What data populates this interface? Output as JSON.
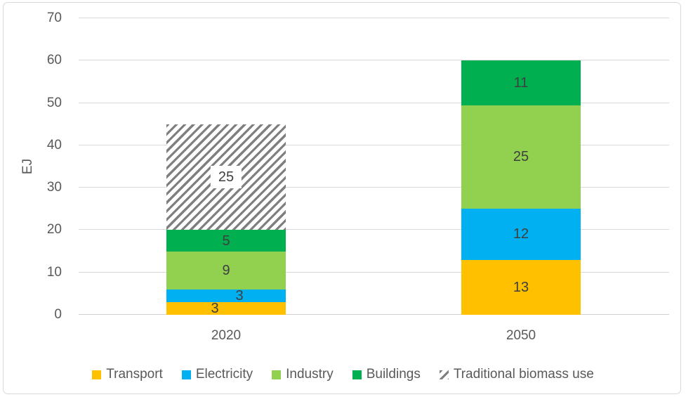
{
  "frame": {
    "border_color": "#D9D9D9",
    "background": "#FFFFFF"
  },
  "chart_data": {
    "type": "stacked-bar",
    "title": "",
    "ylabel": "EJ",
    "xlabel": "",
    "ylim": [
      0,
      70
    ],
    "yticks": [
      0,
      10,
      20,
      30,
      40,
      50,
      60,
      70
    ],
    "grid": true,
    "gridline_color": "#D9D9D9",
    "axis_text_color": "#595959",
    "data_label_color": "#3F3F3F",
    "legend_position": "bottom",
    "categories": [
      "2020",
      "2050"
    ],
    "category_totals": [
      45,
      60
    ],
    "series": [
      {
        "name": "Transport",
        "color": "#FFC000",
        "values": [
          3,
          13
        ],
        "label_dx": [
          -16,
          0
        ]
      },
      {
        "name": "Electricity",
        "color": "#00B0F0",
        "values": [
          3,
          12
        ],
        "label_dx": [
          19,
          0
        ]
      },
      {
        "name": "Industry",
        "color": "#92D050",
        "values": [
          9,
          25
        ],
        "plot_values": [
          9,
          24.5
        ]
      },
      {
        "name": "Buildings",
        "color": "#00B050",
        "values": [
          5,
          11
        ],
        "plot_values": [
          5,
          10.5
        ]
      },
      {
        "name": "Traditional biomass use",
        "pattern": "hatch",
        "hatch_color": "#7F7F7F",
        "values": [
          25,
          0
        ],
        "label_boxed": true
      }
    ]
  }
}
